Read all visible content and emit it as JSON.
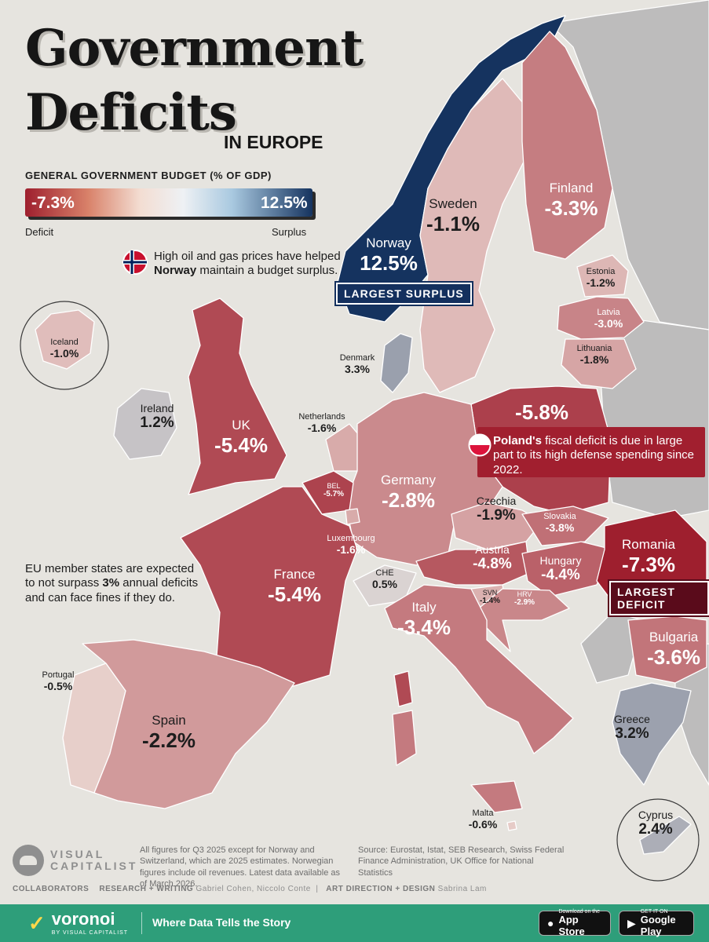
{
  "title": {
    "line1": "Government",
    "line2": "Deficits",
    "subtitle": "IN EUROPE"
  },
  "legend": {
    "title": "GENERAL GOVERNMENT BUDGET (% OF GDP)",
    "min": "-7.3%",
    "max": "12.5%",
    "low_label": "Deficit",
    "high_label": "Surplus"
  },
  "notes": {
    "norway": {
      "pre": "High oil and gas prices have helped ",
      "bold": "Norway",
      "post": " maintain a budget surplus."
    },
    "poland": {
      "bold": "Poland's",
      "post": " fiscal deficit is due in large part to its high defense spending since 2022."
    },
    "eu": {
      "pre": "EU member states are expected to not surpass ",
      "bold": "3%",
      "post": " annual deficits and can face fines if they do."
    }
  },
  "badges": {
    "surplus": "LARGEST SURPLUS",
    "deficit": "LARGEST DEFICIT"
  },
  "countries": [
    {
      "name": "Norway",
      "value": "12.5%",
      "v": 12.5
    },
    {
      "name": "Sweden",
      "value": "-1.1%",
      "v": -1.1
    },
    {
      "name": "Finland",
      "value": "-3.3%",
      "v": -3.3
    },
    {
      "name": "Estonia",
      "value": "-1.2%",
      "v": -1.2
    },
    {
      "name": "Latvia",
      "value": "-3.0%",
      "v": -3.0
    },
    {
      "name": "Lithuania",
      "value": "-1.8%",
      "v": -1.8
    },
    {
      "name": "Iceland",
      "value": "-1.0%",
      "v": -1.0
    },
    {
      "name": "Denmark",
      "value": "3.3%",
      "v": 3.3
    },
    {
      "name": "Ireland",
      "value": "1.2%",
      "v": 1.2
    },
    {
      "name": "UK",
      "value": "-5.4%",
      "v": -5.4
    },
    {
      "name": "Netherlands",
      "value": "-1.6%",
      "v": -1.6
    },
    {
      "name": "Poland",
      "value": "-5.8%",
      "v": -5.8
    },
    {
      "name": "Germany",
      "value": "-2.8%",
      "v": -2.8
    },
    {
      "name": "BEL",
      "value": "-5.7%",
      "v": -5.7
    },
    {
      "name": "Czechia",
      "value": "-1.9%",
      "v": -1.9
    },
    {
      "name": "Slovakia",
      "value": "-3.8%",
      "v": -3.8
    },
    {
      "name": "Luxembourg",
      "value": "-1.6%",
      "v": -1.6
    },
    {
      "name": "Austria",
      "value": "-4.8%",
      "v": -4.8
    },
    {
      "name": "Hungary",
      "value": "-4.4%",
      "v": -4.4
    },
    {
      "name": "Romania",
      "value": "-7.3%",
      "v": -7.3
    },
    {
      "name": "France",
      "value": "-5.4%",
      "v": -5.4
    },
    {
      "name": "CHE",
      "value": "0.5%",
      "v": 0.5
    },
    {
      "name": "SVN",
      "value": "-1.4%",
      "v": -1.4
    },
    {
      "name": "HRV",
      "value": "-2.9%",
      "v": -2.9
    },
    {
      "name": "Italy",
      "value": "-3.4%",
      "v": -3.4
    },
    {
      "name": "Bulgaria",
      "value": "-3.6%",
      "v": -3.6
    },
    {
      "name": "Portugal",
      "value": "-0.5%",
      "v": -0.5
    },
    {
      "name": "Spain",
      "value": "-2.2%",
      "v": -2.2
    },
    {
      "name": "Greece",
      "value": "3.2%",
      "v": 3.2
    },
    {
      "name": "Malta",
      "value": "-0.6%",
      "v": -0.6
    },
    {
      "name": "Cyprus",
      "value": "2.4%",
      "v": 2.4
    }
  ],
  "footnote": "All figures for Q3 2025 except for Norway and Switzerland, which are 2025 estimates. Norwegian figures include oil revenues. Latest data available as of March 2026.",
  "source": "Source: Eurostat, Istat, SEB Research, Swiss Federal Finance Administration, UK Office for National Statistics",
  "logo": "VISUAL\nCAPITALIST",
  "credits": {
    "collaborators": "COLLABORATORS",
    "research_role": "RESEARCH + WRITING",
    "research_names": "Gabriel Cohen, Niccolo Conte",
    "design_role": "ART DIRECTION + DESIGN",
    "design_names": "Sabrina Lam"
  },
  "footer": {
    "brand": "voronoi",
    "brand_sub": "BY VISUAL CAPITALIST",
    "tagline": "Where Data Tells the Story",
    "appstore_small": "Download on the",
    "appstore": "App Store",
    "play_small": "GET IT ON",
    "play": "Google Play"
  },
  "colors": {
    "deficit_max": "#9e1f2e",
    "surplus_max": "#15335f",
    "neutral": "#f1e6df",
    "non_eu_land": "#bdbcbc",
    "background": "#e6e4df",
    "footer": "#2e9e7a"
  }
}
